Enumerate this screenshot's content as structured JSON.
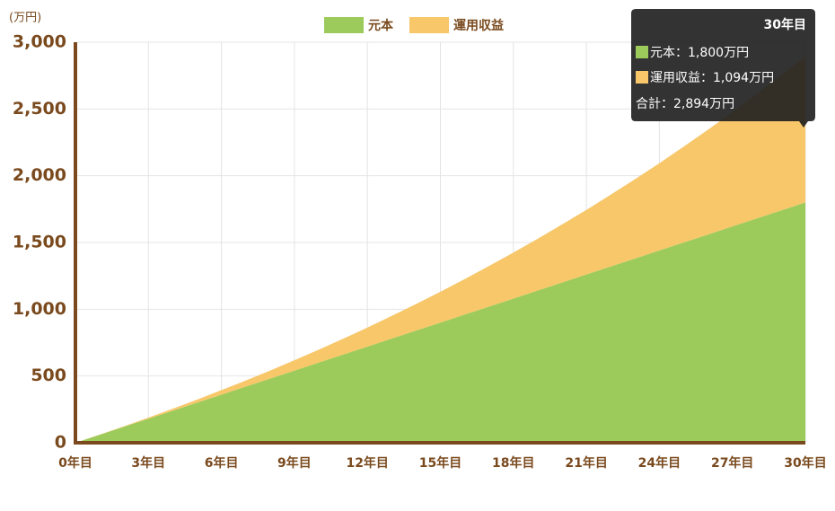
{
  "chart_data": {
    "type": "stacked_area",
    "y_unit_label": "(万円)",
    "x": [
      0,
      1,
      2,
      3,
      4,
      5,
      6,
      7,
      8,
      9,
      10,
      11,
      12,
      13,
      14,
      15,
      16,
      17,
      18,
      19,
      20,
      21,
      22,
      23,
      24,
      25,
      26,
      27,
      28,
      29,
      30
    ],
    "series": [
      {
        "name": "元本",
        "color": "#9ccb5b",
        "values": [
          0,
          60,
          120,
          180,
          240,
          300,
          360,
          420,
          480,
          540,
          600,
          660,
          720,
          780,
          840,
          900,
          960,
          1020,
          1080,
          1140,
          1200,
          1260,
          1320,
          1380,
          1440,
          1500,
          1560,
          1620,
          1680,
          1740,
          1800
        ]
      },
      {
        "name": "運用収益",
        "color": "#f7c76a",
        "values": [
          0,
          1,
          4,
          8,
          15,
          23,
          34,
          46,
          61,
          78,
          97,
          119,
          143,
          170,
          199,
          231,
          266,
          304,
          344,
          388,
          435,
          484,
          538,
          594,
          654,
          718,
          785,
          856,
          931,
          1011,
          1094
        ]
      }
    ],
    "xlim": [
      0,
      30
    ],
    "xticks": [
      {
        "value": 0,
        "label": "0年目"
      },
      {
        "value": 3,
        "label": "3年目"
      },
      {
        "value": 6,
        "label": "6年目"
      },
      {
        "value": 9,
        "label": "9年目"
      },
      {
        "value": 12,
        "label": "12年目"
      },
      {
        "value": 15,
        "label": "15年目"
      },
      {
        "value": 18,
        "label": "18年目"
      },
      {
        "value": 21,
        "label": "21年目"
      },
      {
        "value": 24,
        "label": "24年目"
      },
      {
        "value": 27,
        "label": "27年目"
      },
      {
        "value": 30,
        "label": "30年目"
      }
    ],
    "ylim": [
      0,
      3000
    ],
    "yticks": [
      0,
      500,
      {
        "value": 1000,
        "label": "1,000"
      },
      {
        "value": 1500,
        "label": "1,500"
      },
      {
        "value": 2000,
        "label": "2,000"
      },
      {
        "value": 2500,
        "label": "2,500"
      },
      {
        "value": 3000,
        "label": "3,000"
      }
    ],
    "grid": true,
    "tooltip": {
      "title": "30年目",
      "lines": [
        "元本：1,800万円",
        "運用収益：1,094万円"
      ],
      "total": "合計：2,894万円"
    }
  }
}
